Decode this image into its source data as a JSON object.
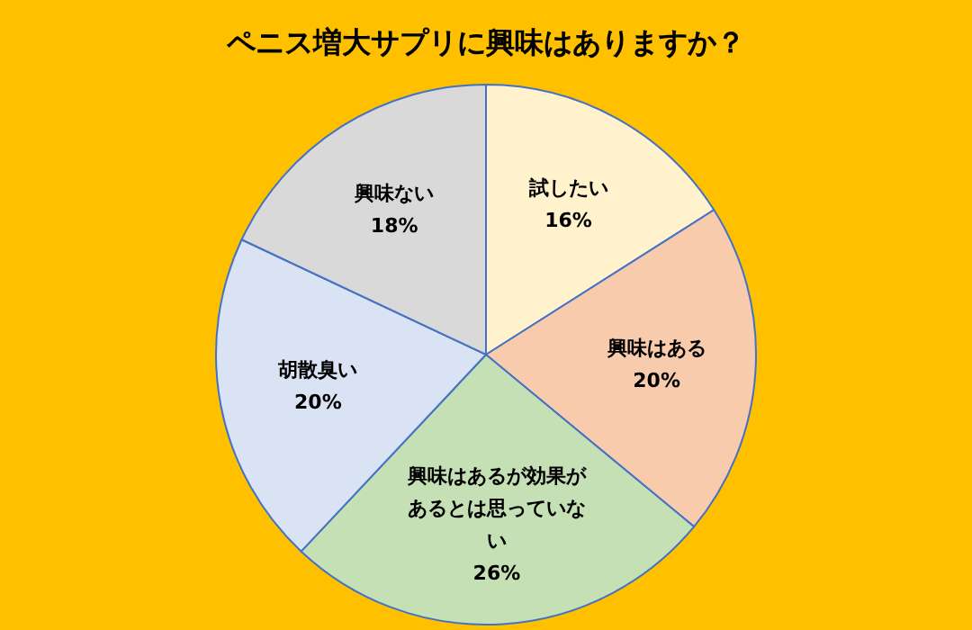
{
  "chart_data": {
    "type": "pie",
    "title": "ペニス増大サプリに興味はありますか？",
    "categories": [
      "試したい",
      "興味はある",
      "興味はあるが効果があるとは思っていない",
      "胡散臭い",
      "興味ない"
    ],
    "values": [
      16,
      20,
      26,
      20,
      18
    ],
    "value_labels": [
      "16%",
      "20%",
      "26%",
      "20%",
      "18%"
    ],
    "colors": [
      "#fff2cc",
      "#f8cbad",
      "#c5e0b4",
      "#dae3f3",
      "#d9d9d9"
    ],
    "legend": false
  }
}
